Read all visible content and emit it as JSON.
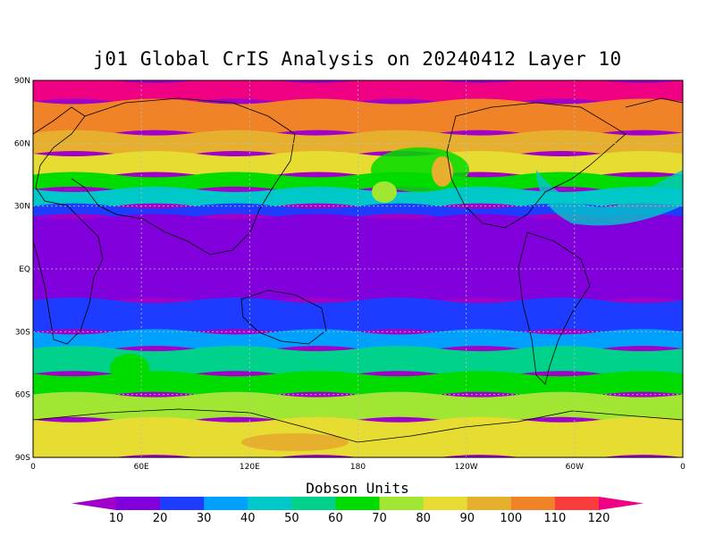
{
  "title": "j01 Global CrIS Analysis on 20240412 Layer 10",
  "colorbar": {
    "label": "Dobson Units",
    "levels": [
      "10",
      "20",
      "30",
      "40",
      "50",
      "60",
      "70",
      "80",
      "90",
      "100",
      "110",
      "120"
    ],
    "colors": [
      "#a000c8",
      "#8200dc",
      "#1e3cff",
      "#00a0ff",
      "#00c8c8",
      "#00d28c",
      "#00dc00",
      "#a0e632",
      "#e6dc32",
      "#e6af2d",
      "#f08228",
      "#fa3c3c",
      "#f00082"
    ]
  },
  "axes": {
    "y_labels": [
      "90N",
      "60N",
      "30N",
      "EQ",
      "30S",
      "60S",
      "90S"
    ],
    "x_labels": [
      "0",
      "60E",
      "120E",
      "180",
      "120W",
      "60W",
      "0"
    ]
  },
  "chart_data": {
    "type": "heatmap",
    "title": "j01 Global CrIS Analysis on 20240412 Layer 10",
    "x_range": [
      0,
      360
    ],
    "y_range": [
      -90,
      90
    ],
    "x_ticks": [
      "0",
      "60E",
      "120E",
      "180",
      "120W",
      "60W",
      "0"
    ],
    "y_ticks": [
      "90N",
      "60N",
      "30N",
      "EQ",
      "30S",
      "60S",
      "90S"
    ],
    "colorbar_label": "Dobson Units",
    "colorbar_levels": [
      10,
      20,
      30,
      40,
      50,
      60,
      70,
      80,
      90,
      100,
      110,
      120
    ],
    "grid": true,
    "zonal_bands": [
      {
        "lat": [
          80,
          90
        ],
        "value": 120
      },
      {
        "lat": [
          65,
          80
        ],
        "value": 105
      },
      {
        "lat": [
          55,
          65
        ],
        "value": 95
      },
      {
        "lat": [
          45,
          55
        ],
        "value": 80
      },
      {
        "lat": [
          38,
          45
        ],
        "value": 65
      },
      {
        "lat": [
          30,
          38
        ],
        "value": 45
      },
      {
        "lat": [
          25,
          30
        ],
        "value": 28
      },
      {
        "lat": [
          -15,
          25
        ],
        "value": 15
      },
      {
        "lat": [
          -30,
          -15
        ],
        "value": 20
      },
      {
        "lat": [
          -38,
          -30
        ],
        "value": 35
      },
      {
        "lat": [
          -50,
          -38
        ],
        "value": 50
      },
      {
        "lat": [
          -60,
          -50
        ],
        "value": 68
      },
      {
        "lat": [
          -72,
          -60
        ],
        "value": 78
      },
      {
        "lat": [
          -90,
          -72
        ],
        "value": 88
      }
    ]
  }
}
